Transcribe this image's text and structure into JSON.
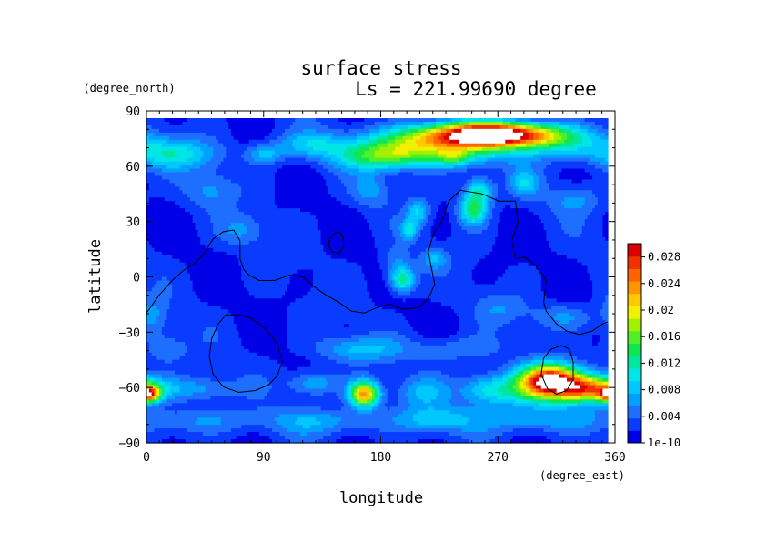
{
  "chart_data": {
    "type": "heatmap",
    "title": "surface stress",
    "subtitle": "Ls = 221.99690 degree",
    "xlabel": "longitude",
    "ylabel": "latitude",
    "x_unit": "(degree_east)",
    "y_unit": "(degree_north)",
    "xlim": [
      0,
      360
    ],
    "ylim": [
      -90,
      90
    ],
    "x_ticks": [
      "0",
      "90",
      "180",
      "270",
      "360"
    ],
    "y_ticks": [
      "90",
      "60",
      "30",
      "0",
      "−30",
      "−60",
      "−90"
    ],
    "x_tick_values": [
      0,
      90,
      180,
      270,
      360
    ],
    "y_tick_values": [
      90,
      60,
      30,
      0,
      -30,
      -60,
      -90
    ],
    "colorbar": {
      "min": 0,
      "max": 0.03,
      "labels": [
        "0.028",
        "0.024",
        "0.02",
        "0.016",
        "0.012",
        "0.008",
        "0.004",
        "1e-10"
      ],
      "label_values": [
        0.028,
        0.024,
        0.02,
        0.016,
        0.012,
        0.008,
        0.004,
        0
      ],
      "colors": [
        "#0000e6",
        "#0a3cff",
        "#1e6eff",
        "#00a0ff",
        "#00c8ff",
        "#00e6e6",
        "#00e6a0",
        "#10e650",
        "#50f028",
        "#a0f000",
        "#f0f000",
        "#ffc800",
        "#ff9600",
        "#ff6400",
        "#f03200",
        "#dc0000"
      ]
    },
    "background_value": 0.002,
    "features": [
      {
        "lon": 270,
        "lat": 81,
        "slon": 34,
        "slat": 4.5,
        "amp": 0.032
      },
      {
        "lon": 220,
        "lat": 74,
        "slon": 38,
        "slat": 7,
        "amp": 0.016
      },
      {
        "lon": 180,
        "lat": 68,
        "slon": 22,
        "slat": 5,
        "amp": 0.008
      },
      {
        "lon": 320,
        "lat": 76,
        "slon": 30,
        "slat": 6,
        "amp": 0.007
      },
      {
        "lon": 20,
        "lat": 70,
        "slon": 25,
        "slat": 6,
        "amp": 0.008
      },
      {
        "lon": 128,
        "lat": 75,
        "slon": 20,
        "slat": 5,
        "amp": 0.006
      },
      {
        "lon": 92,
        "lat": 70,
        "slon": 10,
        "slat": 4,
        "amp": 0.006
      },
      {
        "lon": 240,
        "lat": 68,
        "slon": 8,
        "slat": 3,
        "amp": 0.006
      },
      {
        "lon": 50,
        "lat": 50,
        "slon": 14,
        "slat": 7,
        "amp": 0.004
      },
      {
        "lon": 175,
        "lat": 50,
        "slon": 10,
        "slat": 6,
        "amp": 0.004
      },
      {
        "lon": 295,
        "lat": 54,
        "slon": 8,
        "slat": 5,
        "amp": 0.006
      },
      {
        "lon": 335,
        "lat": 45,
        "slon": 14,
        "slat": 6,
        "amp": 0.004
      },
      {
        "lon": 255,
        "lat": 39,
        "slon": 8,
        "slat": 6,
        "amp": 0.012
      },
      {
        "lon": 260,
        "lat": 50,
        "slon": 8,
        "slat": 5,
        "amp": 0.009
      },
      {
        "lon": 212,
        "lat": 38,
        "slon": 6,
        "slat": 5,
        "amp": 0.007
      },
      {
        "lon": 205,
        "lat": 28,
        "slon": 5,
        "slat": 4,
        "amp": 0.007
      },
      {
        "lon": 75,
        "lat": 28,
        "slon": 12,
        "slat": 6,
        "amp": 0.004
      },
      {
        "lon": 195,
        "lat": 10,
        "slon": 8,
        "slat": 6,
        "amp": 0.004
      },
      {
        "lon": 200,
        "lat": 0,
        "slon": 7,
        "slat": 5,
        "amp": 0.011
      },
      {
        "lon": 225,
        "lat": 12,
        "slon": 7,
        "slat": 4,
        "amp": 0.005
      },
      {
        "lon": 5,
        "lat": -20,
        "slon": 8,
        "slat": 8,
        "amp": 0.004
      },
      {
        "lon": 275,
        "lat": -15,
        "slon": 14,
        "slat": 6,
        "amp": 0.003
      },
      {
        "lon": 325,
        "lat": -20,
        "slon": 18,
        "slat": 5,
        "amp": 0.004
      },
      {
        "lon": 165,
        "lat": -38,
        "slon": 22,
        "slat": 5,
        "amp": 0.006
      },
      {
        "lon": 240,
        "lat": -38,
        "slon": 25,
        "slat": 5,
        "amp": 0.004
      },
      {
        "lon": 15,
        "lat": -38,
        "slon": 12,
        "slat": 6,
        "amp": 0.004
      },
      {
        "lon": 315,
        "lat": -55,
        "slon": 16,
        "slat": 6,
        "amp": 0.026
      },
      {
        "lon": 345,
        "lat": -60,
        "slon": 18,
        "slat": 5,
        "amp": 0.02
      },
      {
        "lon": 300,
        "lat": -62,
        "slon": 28,
        "slat": 7,
        "amp": 0.008
      },
      {
        "lon": 170,
        "lat": -63,
        "slon": 8,
        "slat": 5,
        "amp": 0.022
      },
      {
        "lon": 2,
        "lat": -63,
        "slon": 6,
        "slat": 3,
        "amp": 0.018
      },
      {
        "lon": 40,
        "lat": -60,
        "slon": 20,
        "slat": 5,
        "amp": 0.005
      },
      {
        "lon": 130,
        "lat": -57,
        "slon": 14,
        "slat": 5,
        "amp": 0.006
      },
      {
        "lon": 215,
        "lat": -62,
        "slon": 14,
        "slat": 6,
        "amp": 0.005
      },
      {
        "lon": 265,
        "lat": -60,
        "slon": 14,
        "slat": 6,
        "amp": 0.006
      },
      {
        "lon": 140,
        "lat": -78,
        "slon": 35,
        "slat": 5,
        "amp": 0.005
      },
      {
        "lon": 300,
        "lat": -78,
        "slon": 35,
        "slat": 5,
        "amp": 0.005
      },
      {
        "lon": 40,
        "lat": -78,
        "slon": 30,
        "slat": 5,
        "amp": 0.004
      },
      {
        "lon": 225,
        "lat": -77,
        "slon": 20,
        "slat": 5,
        "amp": 0.006
      }
    ],
    "contours": [
      {
        "name": "equatorial-boundary",
        "closed": false,
        "points": [
          [
            0,
            -18
          ],
          [
            10,
            -8
          ],
          [
            20,
            0
          ],
          [
            28,
            5
          ],
          [
            38,
            10
          ],
          [
            44,
            14
          ],
          [
            52,
            23
          ],
          [
            60,
            27
          ],
          [
            68,
            28
          ],
          [
            73,
            22
          ],
          [
            73,
            12
          ],
          [
            76,
            6
          ],
          [
            80,
            3
          ],
          [
            88,
            0
          ],
          [
            100,
            0
          ],
          [
            112,
            3
          ],
          [
            122,
            2
          ],
          [
            130,
            -3
          ],
          [
            140,
            -8
          ],
          [
            150,
            -12
          ],
          [
            160,
            -17
          ],
          [
            170,
            -18
          ],
          [
            180,
            -15
          ],
          [
            190,
            -13
          ],
          [
            200,
            -16
          ],
          [
            212,
            -15
          ],
          [
            220,
            -10
          ],
          [
            225,
            -2
          ],
          [
            222,
            8
          ],
          [
            220,
            16
          ],
          [
            224,
            26
          ],
          [
            230,
            32
          ],
          [
            236,
            44
          ],
          [
            245,
            50
          ],
          [
            262,
            48
          ],
          [
            275,
            44
          ],
          [
            288,
            44
          ],
          [
            290,
            32
          ],
          [
            285,
            22
          ],
          [
            288,
            12
          ],
          [
            295,
            13
          ],
          [
            304,
            8
          ],
          [
            312,
            0
          ],
          [
            310,
            -12
          ],
          [
            312,
            -17
          ],
          [
            320,
            -24
          ],
          [
            328,
            -28
          ],
          [
            338,
            -30
          ],
          [
            348,
            -28
          ],
          [
            356,
            -24
          ],
          [
            360,
            -23
          ]
        ]
      },
      {
        "name": "small-island",
        "closed": true,
        "points": [
          [
            143,
            23
          ],
          [
            146,
            26
          ],
          [
            150,
            27
          ],
          [
            153,
            25
          ],
          [
            154,
            19
          ],
          [
            150,
            15
          ],
          [
            145,
            16
          ],
          [
            142,
            19
          ]
        ]
      },
      {
        "name": "southern-basin",
        "closed": true,
        "points": [
          [
            62,
            -19
          ],
          [
            72,
            -19
          ],
          [
            82,
            -21
          ],
          [
            93,
            -27
          ],
          [
            102,
            -35
          ],
          [
            106,
            -45
          ],
          [
            102,
            -53
          ],
          [
            95,
            -58
          ],
          [
            85,
            -61
          ],
          [
            72,
            -62
          ],
          [
            60,
            -59
          ],
          [
            52,
            -52
          ],
          [
            49,
            -42
          ],
          [
            51,
            -32
          ],
          [
            56,
            -24
          ]
        ]
      },
      {
        "name": "south-east-ring",
        "closed": true,
        "points": [
          [
            324,
            -36
          ],
          [
            330,
            -38
          ],
          [
            333,
            -45
          ],
          [
            333,
            -55
          ],
          [
            328,
            -61
          ],
          [
            320,
            -63
          ],
          [
            313,
            -60
          ],
          [
            308,
            -52
          ],
          [
            310,
            -43
          ],
          [
            316,
            -38
          ]
        ]
      }
    ]
  }
}
